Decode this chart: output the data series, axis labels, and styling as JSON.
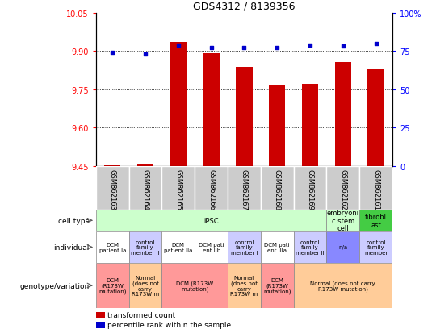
{
  "title": "GDS4312 / 8139356",
  "samples": [
    "GSM862163",
    "GSM862164",
    "GSM862165",
    "GSM862166",
    "GSM862167",
    "GSM862168",
    "GSM862169",
    "GSM862162",
    "GSM862161"
  ],
  "bar_values": [
    9.454,
    9.455,
    9.935,
    9.892,
    9.838,
    9.768,
    9.77,
    9.856,
    9.828
  ],
  "dot_values": [
    74,
    73,
    79,
    77,
    77,
    77,
    79,
    78,
    80
  ],
  "bar_base": 9.45,
  "ylim_left": [
    9.45,
    10.05
  ],
  "ylim_right": [
    0,
    100
  ],
  "yticks_left": [
    9.45,
    9.6,
    9.75,
    9.9,
    10.05
  ],
  "yticks_right": [
    0,
    25,
    50,
    75,
    100
  ],
  "bar_color": "#cc0000",
  "dot_color": "#0000cc",
  "cell_type_data": [
    {
      "text": "iPSC",
      "color": "#ccffcc",
      "start": 0,
      "end": 7
    },
    {
      "text": "embryoni\nc stem\ncell",
      "color": "#ccffcc",
      "start": 7,
      "end": 8
    },
    {
      "text": "fibrobl\nast",
      "color": "#44cc44",
      "start": 8,
      "end": 9
    }
  ],
  "individual_row": [
    {
      "text": "DCM\npatient Ia",
      "color": "#ffffff",
      "start": 0,
      "end": 1
    },
    {
      "text": "control\nfamily\nmember II",
      "color": "#ccccff",
      "start": 1,
      "end": 2
    },
    {
      "text": "DCM\npatient IIa",
      "color": "#ffffff",
      "start": 2,
      "end": 3
    },
    {
      "text": "DCM pati\nent IIb",
      "color": "#ffffff",
      "start": 3,
      "end": 4
    },
    {
      "text": "control\nfamily\nmember I",
      "color": "#ccccff",
      "start": 4,
      "end": 5
    },
    {
      "text": "DCM pati\nent IIIa",
      "color": "#ffffff",
      "start": 5,
      "end": 6
    },
    {
      "text": "control\nfamily\nmember II",
      "color": "#ccccff",
      "start": 6,
      "end": 7
    },
    {
      "text": "n/a",
      "color": "#8888ff",
      "start": 7,
      "end": 8
    },
    {
      "text": "control\nfamily\nmember",
      "color": "#ccccff",
      "start": 8,
      "end": 9
    }
  ],
  "genotype_row": [
    {
      "text": "DCM\n(R173W\nmutation)",
      "color": "#ff9999",
      "start": 0,
      "end": 1
    },
    {
      "text": "Normal\n(does not\ncarry\nR173W m",
      "color": "#ffcc99",
      "start": 1,
      "end": 2
    },
    {
      "text": "DCM (R173W\nmutation)",
      "color": "#ff9999",
      "start": 2,
      "end": 4
    },
    {
      "text": "Normal\n(does not\ncarry\nR173W m",
      "color": "#ffcc99",
      "start": 4,
      "end": 5
    },
    {
      "text": "DCM\n(R173W\nmutation)",
      "color": "#ff9999",
      "start": 5,
      "end": 6
    },
    {
      "text": "Normal (does not carry\nR173W mutation)",
      "color": "#ffcc99",
      "start": 6,
      "end": 9
    }
  ],
  "row_labels": [
    "cell type",
    "individual",
    "genotype/variation"
  ],
  "legend_items": [
    {
      "color": "#cc0000",
      "label": "transformed count"
    },
    {
      "color": "#0000cc",
      "label": "percentile rank within the sample"
    }
  ],
  "gsm_bg_color": "#cccccc"
}
